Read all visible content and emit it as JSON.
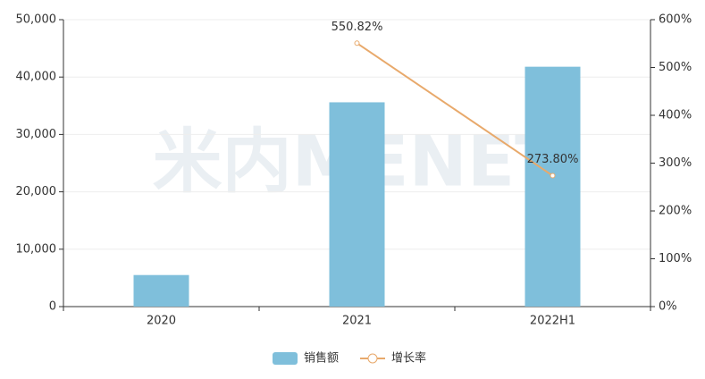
{
  "chart_data": {
    "type": "bar",
    "watermark": "米内MENET",
    "categories": [
      "2020",
      "2021",
      "2022H1"
    ],
    "series": [
      {
        "name": "销售额",
        "type": "bar",
        "color": "#7fbfdb",
        "values": [
          5500,
          35600,
          41800
        ]
      },
      {
        "name": "增长率",
        "type": "line",
        "axis": "y2",
        "color": "#e8a96b",
        "values": [
          null,
          550.82,
          273.8
        ],
        "value_labels": [
          null,
          "550.82%",
          "273.80%"
        ]
      }
    ],
    "ylim": [
      0,
      50000
    ],
    "yticks": [
      0,
      {
        "value": 10000,
        "label": "10,000"
      },
      {
        "value": 20000,
        "label": "20,000"
      },
      {
        "value": 30000,
        "label": "30,000"
      },
      {
        "value": 40000,
        "label": "40,000"
      },
      {
        "value": 50000,
        "label": "50,000"
      }
    ],
    "y2lim": [
      0,
      600
    ],
    "y2ticks": [
      {
        "value": 0,
        "label": "0%"
      },
      {
        "value": 100,
        "label": "100%"
      },
      {
        "value": 200,
        "label": "200%"
      },
      {
        "value": 300,
        "label": "300%"
      },
      {
        "value": 400,
        "label": "400%"
      },
      {
        "value": 500,
        "label": "500%"
      },
      {
        "value": 600,
        "label": "600%"
      }
    ],
    "grid": true,
    "legend": "bottom"
  }
}
